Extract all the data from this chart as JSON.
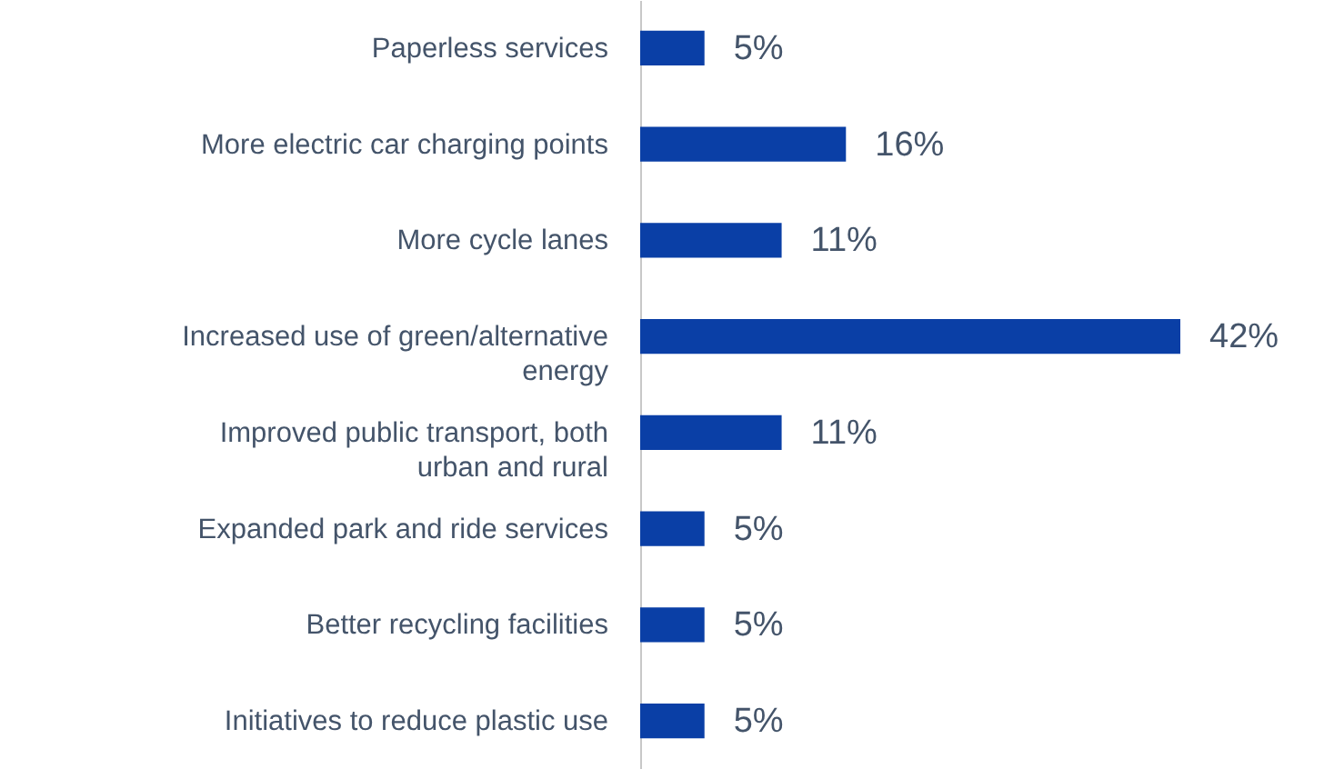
{
  "chart_data": {
    "type": "bar",
    "orientation": "horizontal",
    "categories": [
      "Paperless services",
      "More electric car charging points",
      "More cycle lanes",
      "Increased use of green/alternative energy",
      "Improved public transport, both urban and rural",
      "Expanded park and ride services",
      "Better recycling facilities",
      "Initiatives to reduce plastic use"
    ],
    "values": [
      5,
      16,
      11,
      42,
      11,
      5,
      5,
      5
    ],
    "value_labels": [
      "5%",
      "16%",
      "11%",
      "42%",
      "11%",
      "5%",
      "5%",
      "5%"
    ],
    "color": "#0a3fa6"
  }
}
